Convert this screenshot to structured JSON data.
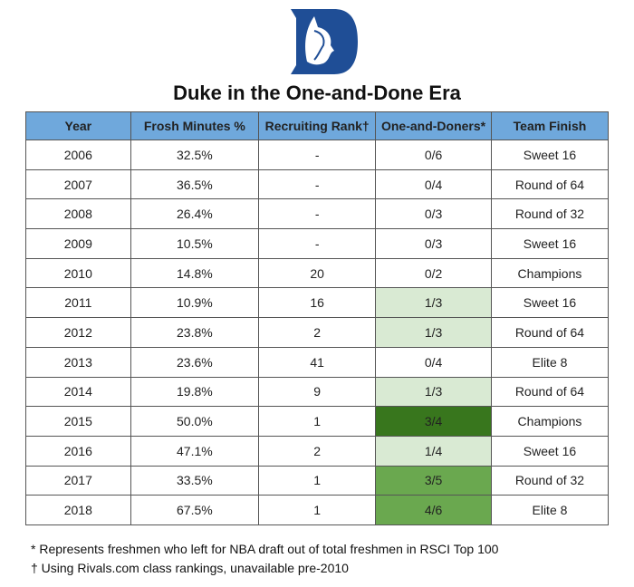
{
  "logo_text": "Duke Blue Devil logo",
  "colors": {
    "header": "#6fa8dc",
    "logo": "#1f4e96",
    "light_green": "#d9ead3",
    "mid_green": "#6aa84f",
    "dark_green": "#38761d"
  },
  "chart_data": {
    "type": "table",
    "title": "Duke in the One-and-Done Era",
    "columns": [
      "Year",
      "Frosh Minutes %",
      "Recruiting Rank†",
      "One-and-Doners*",
      "Team Finish"
    ],
    "rows": [
      [
        "2006",
        "32.5%",
        "-",
        "0/6",
        "Sweet 16"
      ],
      [
        "2007",
        "36.5%",
        "-",
        "0/4",
        "Round of 64"
      ],
      [
        "2008",
        "26.4%",
        "-",
        "0/3",
        "Round of 32"
      ],
      [
        "2009",
        "10.5%",
        "-",
        "0/3",
        "Sweet 16"
      ],
      [
        "2010",
        "14.8%",
        "20",
        "0/2",
        "Champions"
      ],
      [
        "2011",
        "10.9%",
        "16",
        "1/3",
        "Sweet 16"
      ],
      [
        "2012",
        "23.8%",
        "2",
        "1/3",
        "Round of 64"
      ],
      [
        "2013",
        "23.6%",
        "41",
        "0/4",
        "Elite 8"
      ],
      [
        "2014",
        "19.8%",
        "9",
        "1/3",
        "Round of 64"
      ],
      [
        "2015",
        "50.0%",
        "1",
        "3/4",
        "Champions"
      ],
      [
        "2016",
        "47.1%",
        "2",
        "1/4",
        "Sweet 16"
      ],
      [
        "2017",
        "33.5%",
        "1",
        "3/5",
        "Round of 32"
      ],
      [
        "2018",
        "67.5%",
        "1",
        "4/6",
        "Elite 8"
      ]
    ],
    "one_and_done_shading": [
      "none",
      "none",
      "none",
      "none",
      "none",
      "light",
      "light",
      "none",
      "light",
      "dark",
      "light",
      "mid",
      "mid"
    ]
  },
  "footnotes": [
    "* Represents freshmen who left for NBA draft out of total freshmen in RSCI Top 100",
    "† Using Rivals.com class rankings, unavailable pre-2010"
  ]
}
